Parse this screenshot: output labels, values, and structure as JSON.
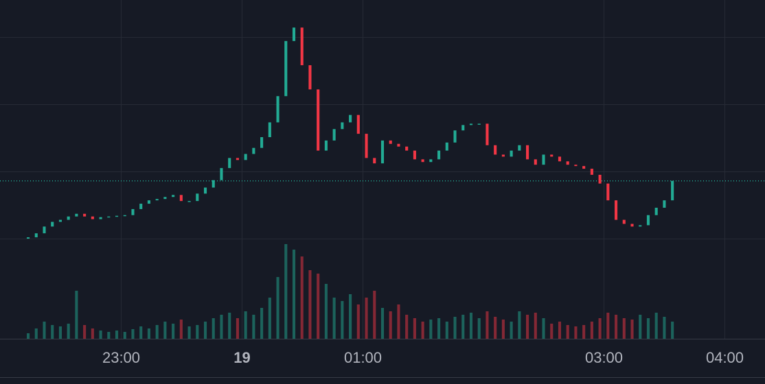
{
  "chart_data": {
    "type": "candlestick",
    "x": [
      -106,
      -102,
      -98,
      -94,
      -90,
      -86,
      -82,
      -78,
      -74,
      -70,
      -66,
      -62,
      -58,
      -54,
      -50,
      -46,
      -42,
      -38,
      -34,
      -30,
      -26,
      -22,
      -18,
      -14,
      -10,
      -6,
      -2,
      2,
      6,
      10,
      14,
      18,
      22,
      26,
      30,
      34,
      38,
      42,
      46,
      50,
      54,
      58,
      62,
      66,
      70,
      74,
      78,
      82,
      86,
      90,
      94,
      98,
      102,
      106,
      110,
      114,
      118,
      122,
      126,
      130,
      134,
      138,
      142,
      146,
      150,
      154,
      158,
      162,
      166,
      170,
      174,
      178,
      182,
      186,
      190,
      194,
      198,
      202,
      206,
      210,
      214
    ],
    "open": [
      1.1,
      1.102,
      1.108,
      1.118,
      1.125,
      1.128,
      1.133,
      1.137,
      1.133,
      1.129,
      1.132,
      1.133,
      1.134,
      1.135,
      1.144,
      1.152,
      1.157,
      1.159,
      1.162,
      1.165,
      1.156,
      1.156,
      1.167,
      1.176,
      1.187,
      1.205,
      1.22,
      1.217,
      1.226,
      1.235,
      1.251,
      1.273,
      1.312,
      1.394,
      1.414,
      1.358,
      1.322,
      1.231,
      1.246,
      1.263,
      1.273,
      1.284,
      1.256,
      1.22,
      1.212,
      1.246,
      1.241,
      1.237,
      1.231,
      1.218,
      1.214,
      1.218,
      1.231,
      1.243,
      1.261,
      1.269,
      1.271,
      1.271,
      1.239,
      1.225,
      1.222,
      1.231,
      1.239,
      1.218,
      1.21,
      1.225,
      1.222,
      1.215,
      1.21,
      1.208,
      1.204,
      1.195,
      1.182,
      1.157,
      1.128,
      1.122,
      1.118,
      1.12,
      1.135,
      1.146,
      1.157
    ],
    "close": [
      1.102,
      1.108,
      1.118,
      1.125,
      1.128,
      1.133,
      1.137,
      1.133,
      1.129,
      1.132,
      1.133,
      1.134,
      1.135,
      1.144,
      1.152,
      1.157,
      1.159,
      1.162,
      1.165,
      1.156,
      1.156,
      1.167,
      1.176,
      1.187,
      1.205,
      1.22,
      1.217,
      1.226,
      1.235,
      1.251,
      1.273,
      1.312,
      1.394,
      1.414,
      1.358,
      1.322,
      1.231,
      1.246,
      1.263,
      1.273,
      1.284,
      1.256,
      1.22,
      1.212,
      1.246,
      1.241,
      1.237,
      1.231,
      1.218,
      1.214,
      1.218,
      1.231,
      1.243,
      1.261,
      1.269,
      1.271,
      1.271,
      1.239,
      1.225,
      1.222,
      1.231,
      1.239,
      1.218,
      1.21,
      1.225,
      1.222,
      1.215,
      1.21,
      1.208,
      1.204,
      1.195,
      1.182,
      1.157,
      1.128,
      1.122,
      1.118,
      1.12,
      1.135,
      1.146,
      1.157,
      1.186
    ],
    "volume": [
      8,
      15,
      25,
      20,
      18,
      22,
      70,
      20,
      15,
      12,
      10,
      12,
      10,
      14,
      18,
      15,
      20,
      25,
      22,
      28,
      18,
      20,
      25,
      30,
      35,
      38,
      30,
      40,
      35,
      45,
      60,
      90,
      138,
      130,
      120,
      100,
      95,
      80,
      60,
      55,
      65,
      50,
      60,
      70,
      45,
      40,
      50,
      35,
      30,
      25,
      28,
      30,
      25,
      32,
      35,
      38,
      30,
      40,
      32,
      28,
      25,
      40,
      35,
      38,
      30,
      22,
      25,
      20,
      18,
      20,
      25,
      30,
      38,
      35,
      30,
      28,
      35,
      30,
      38,
      32,
      25
    ],
    "up_color": "#22ab94",
    "down_color": "#f23645",
    "xlim": [
      -120,
      260
    ],
    "xticks": [
      {
        "value": -60,
        "label": "23:00"
      },
      {
        "value": 0,
        "label": "19"
      },
      {
        "value": 60,
        "label": "01:00"
      },
      {
        "value": 180,
        "label": "03:00"
      },
      {
        "value": 240,
        "label": "04:00"
      }
    ],
    "ylim": [
      1.098,
      1.455
    ],
    "ygrid": [
      1.1,
      1.2,
      1.3,
      1.4
    ],
    "volume_lim": [
      0,
      140
    ],
    "last_price": 1.186
  }
}
